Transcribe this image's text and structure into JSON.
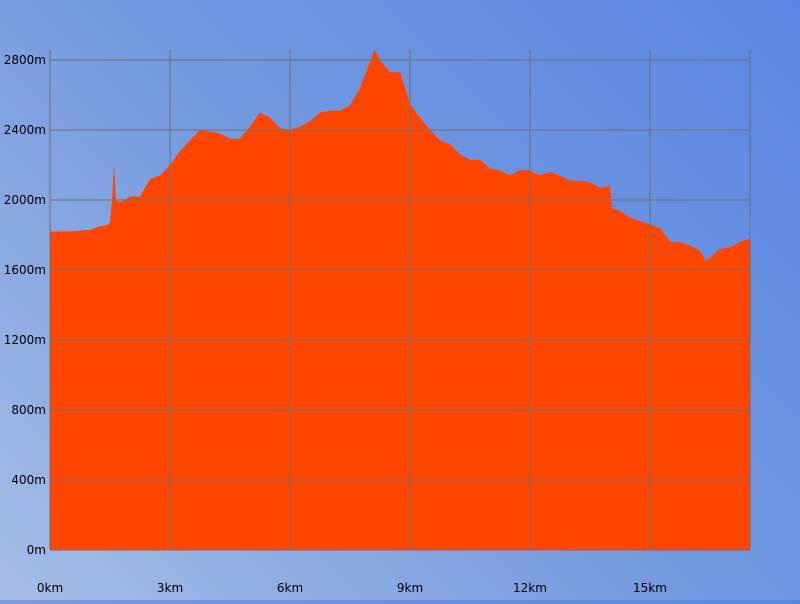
{
  "chart_data": {
    "type": "area",
    "title": "",
    "xlabel": "",
    "ylabel": "",
    "x_unit": "km",
    "y_unit": "m",
    "xlim": [
      0,
      17.5
    ],
    "ylim": [
      0,
      2800
    ],
    "x_ticks": [
      {
        "value": 0,
        "label": "0km"
      },
      {
        "value": 3,
        "label": "3km"
      },
      {
        "value": 6,
        "label": "6km"
      },
      {
        "value": 9,
        "label": "9km"
      },
      {
        "value": 12,
        "label": "12km"
      },
      {
        "value": 15,
        "label": "15km"
      }
    ],
    "y_ticks": [
      {
        "value": 0,
        "label": "0m"
      },
      {
        "value": 400,
        "label": "400m"
      },
      {
        "value": 800,
        "label": "800m"
      },
      {
        "value": 1200,
        "label": "1200m"
      },
      {
        "value": 1600,
        "label": "1600m"
      },
      {
        "value": 2000,
        "label": "2000m"
      },
      {
        "value": 2400,
        "label": "2400m"
      },
      {
        "value": 2800,
        "label": "2800m"
      }
    ],
    "grid": true,
    "fill_color": "#ff4500",
    "grid_color": "#6e6e6e",
    "series": [
      {
        "x": [
          0,
          0.5,
          1.0,
          1.25,
          1.45,
          1.5,
          1.55,
          1.6,
          1.65,
          1.7,
          1.8,
          2.0,
          2.25,
          2.5,
          2.75,
          3.0,
          3.25,
          3.5,
          3.75,
          4.0,
          4.25,
          4.5,
          4.75,
          5.0,
          5.25,
          5.5,
          5.75,
          6.0,
          6.25,
          6.5,
          6.75,
          7.0,
          7.25,
          7.5,
          7.75,
          8.0,
          8.125,
          8.25,
          8.5,
          8.75,
          9.0,
          9.25,
          9.5,
          9.75,
          10.0,
          10.25,
          10.5,
          10.75,
          11.0,
          11.25,
          11.5,
          11.75,
          12.0,
          12.25,
          12.5,
          12.75,
          13.0,
          13.25,
          13.5,
          13.75,
          14.0,
          14.05,
          14.25,
          14.5,
          14.75,
          15.0,
          15.25,
          15.5,
          15.75,
          16.0,
          16.25,
          16.4,
          16.5,
          16.75,
          17.0,
          17.25,
          17.5
        ],
        "y": [
          1820,
          1820,
          1830,
          1850,
          1860,
          1870,
          2000,
          2200,
          2000,
          1990,
          1990,
          2020,
          2020,
          2120,
          2140,
          2200,
          2280,
          2340,
          2400,
          2390,
          2380,
          2350,
          2350,
          2420,
          2500,
          2470,
          2410,
          2400,
          2420,
          2450,
          2500,
          2510,
          2510,
          2540,
          2640,
          2790,
          2860,
          2800,
          2730,
          2730,
          2550,
          2470,
          2400,
          2340,
          2320,
          2260,
          2230,
          2230,
          2180,
          2170,
          2140,
          2170,
          2170,
          2140,
          2160,
          2140,
          2110,
          2110,
          2100,
          2070,
          2080,
          1950,
          1940,
          1900,
          1880,
          1860,
          1840,
          1760,
          1760,
          1740,
          1710,
          1650,
          1670,
          1720,
          1730,
          1760,
          1780
        ]
      }
    ]
  }
}
